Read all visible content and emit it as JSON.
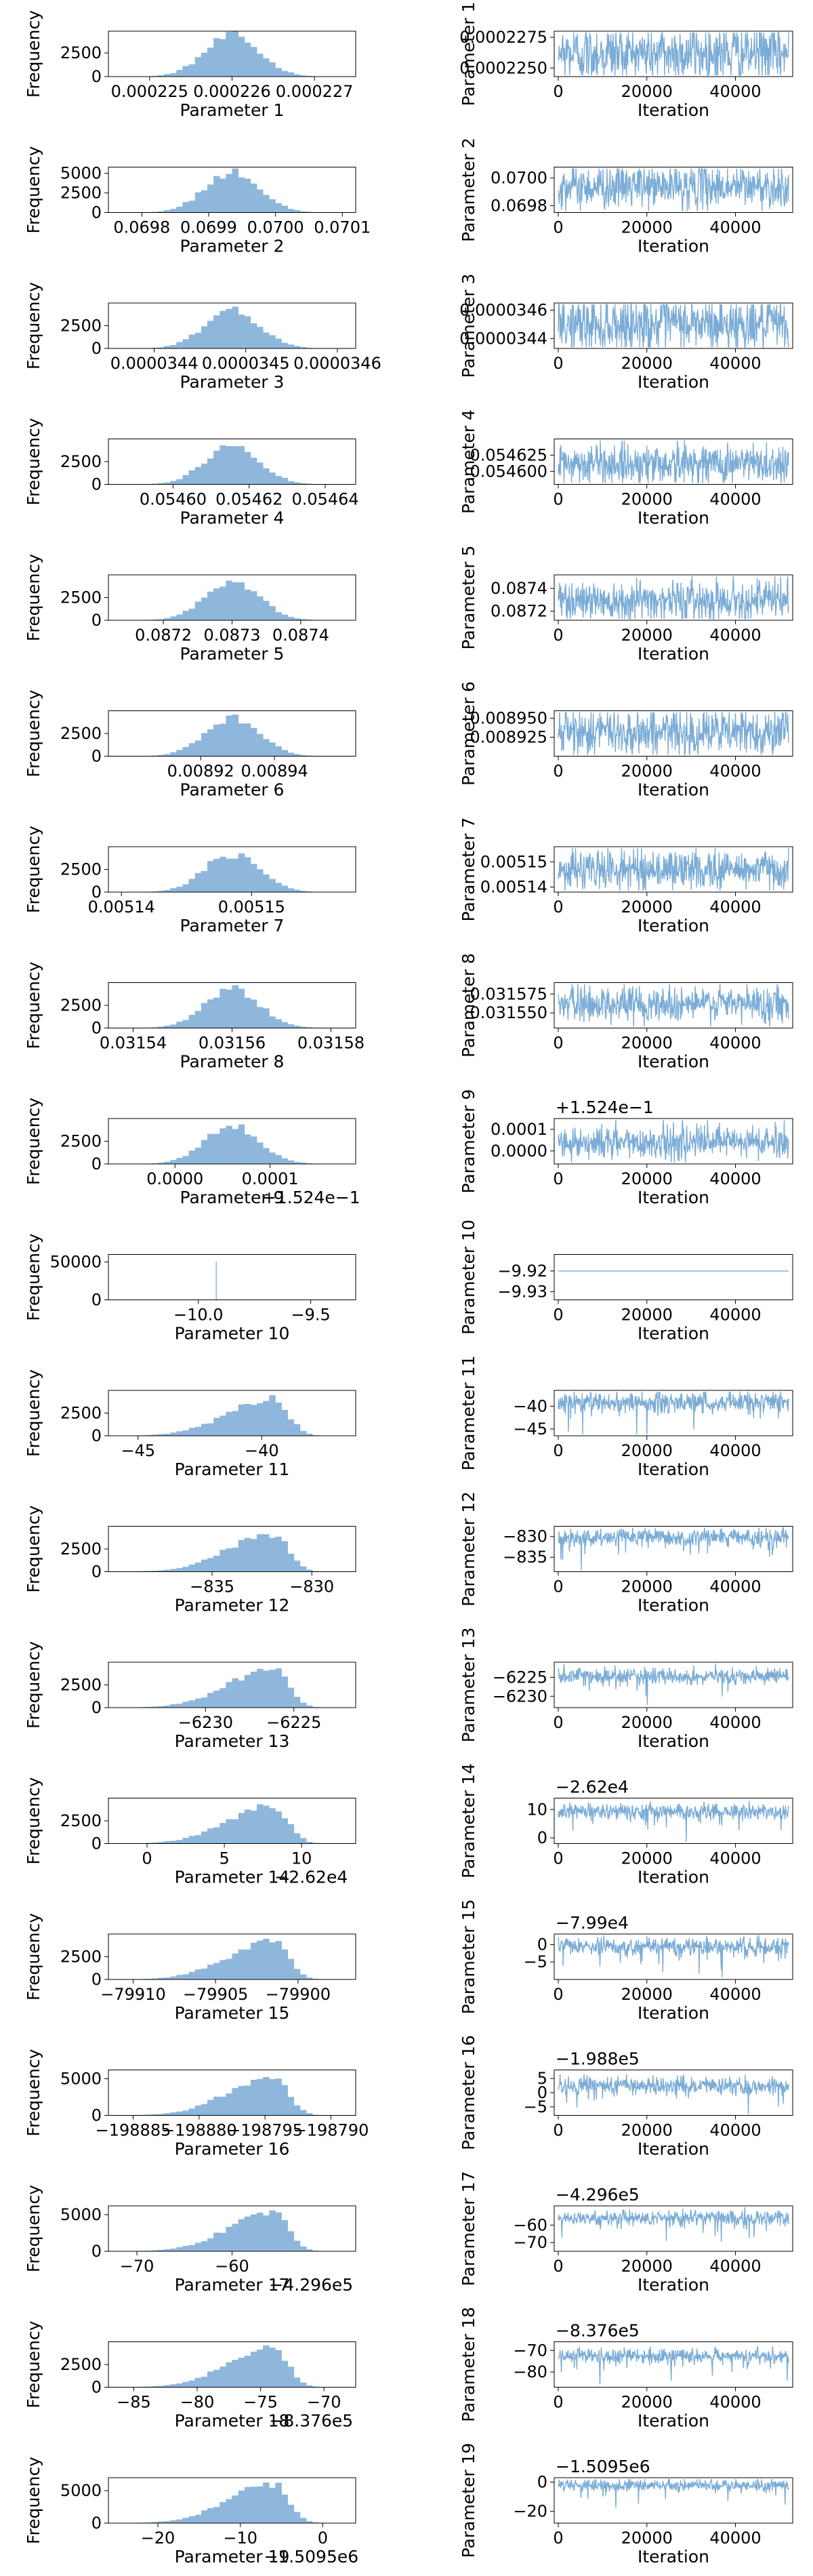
{
  "style": {
    "bar_color": "#8fb7dc",
    "trace_color": "#7bacd6",
    "frame_color": "#000000"
  },
  "chart_data": [
    {
      "param": 1,
      "hist": {
        "type": "bar",
        "xlabel": "Parameter 1",
        "ylabel": "Frequency",
        "xticks": [
          "0.000225",
          "0.000226",
          "0.000227"
        ],
        "yticks": [
          "0",
          "2500"
        ],
        "offset": "",
        "peak": 4300,
        "ymax": 4800,
        "skew": 0,
        "tail": 0.35,
        "xrange": [
          0.0002245,
          0.0002275
        ]
      },
      "trace": {
        "type": "line",
        "xlabel": "Iteration",
        "ylabel": "Parameter 1",
        "xticks": [
          "0",
          "20000",
          "40000"
        ],
        "yticks": [
          "0.0002250",
          "0.0002275"
        ],
        "offset": "",
        "mean": 0.0002262,
        "amp": 1.2e-06,
        "spikes": 0,
        "range": [
          0.0002243,
          0.000228
        ]
      }
    },
    {
      "param": 2,
      "hist": {
        "type": "bar",
        "xlabel": "Parameter 2",
        "ylabel": "Frequency",
        "xticks": [
          "0.0698",
          "0.0699",
          "0.0700",
          "0.0701"
        ],
        "yticks": [
          "0",
          "2500",
          "5000"
        ],
        "offset": "",
        "peak": 5100,
        "ymax": 5800,
        "skew": 0,
        "tail": 0.35,
        "xrange": [
          0.06975,
          0.07012
        ]
      },
      "trace": {
        "type": "line",
        "xlabel": "Iteration",
        "ylabel": "Parameter 2",
        "xticks": [
          "0",
          "20000",
          "40000"
        ],
        "yticks": [
          "0.0698",
          "0.0700"
        ],
        "offset": "",
        "mean": 0.06994,
        "amp": 8e-05,
        "spikes": 0,
        "range": [
          0.06975,
          0.07008
        ]
      }
    },
    {
      "param": 3,
      "hist": {
        "type": "bar",
        "xlabel": "Parameter 3",
        "ylabel": "Frequency",
        "xticks": [
          "0.0000344",
          "0.0000345",
          "0.0000346"
        ],
        "yticks": [
          "0",
          "2500"
        ],
        "offset": "",
        "peak": 4200,
        "ymax": 5000,
        "skew": 0,
        "tail": 0.35,
        "xrange": [
          3.435e-05,
          3.462e-05
        ]
      },
      "trace": {
        "type": "line",
        "xlabel": "Iteration",
        "ylabel": "Parameter 3",
        "xticks": [
          "0",
          "20000",
          "40000"
        ],
        "yticks": [
          "0.0000344",
          "0.0000346"
        ],
        "offset": "",
        "mean": 3.45e-05,
        "amp": 1e-07,
        "spikes": 0,
        "range": [
          3.433e-05,
          3.465e-05
        ]
      }
    },
    {
      "param": 4,
      "hist": {
        "type": "bar",
        "xlabel": "Parameter 4",
        "ylabel": "Frequency",
        "xticks": [
          "0.05460",
          "0.05462",
          "0.05464"
        ],
        "yticks": [
          "0",
          "2500"
        ],
        "offset": "",
        "peak": 4200,
        "ymax": 5000,
        "skew": 0,
        "tail": 0.35,
        "xrange": [
          0.054583,
          0.054648
        ]
      },
      "trace": {
        "type": "line",
        "xlabel": "Iteration",
        "ylabel": "Parameter 4",
        "xticks": [
          "0",
          "20000",
          "40000"
        ],
        "yticks": [
          "0.054600",
          "0.054625"
        ],
        "offset": "",
        "mean": 0.054612,
        "amp": 1.6e-05,
        "spikes": 0,
        "range": [
          0.05458,
          0.05465
        ]
      }
    },
    {
      "param": 5,
      "hist": {
        "type": "bar",
        "xlabel": "Parameter 5",
        "ylabel": "Frequency",
        "xticks": [
          "0.0872",
          "0.0873",
          "0.0874"
        ],
        "yticks": [
          "0",
          "2500"
        ],
        "offset": "",
        "peak": 4200,
        "ymax": 5000,
        "skew": 0,
        "tail": 0.35,
        "xrange": [
          0.08712,
          0.08748
        ]
      },
      "trace": {
        "type": "line",
        "xlabel": "Iteration",
        "ylabel": "Parameter 5",
        "xticks": [
          "0",
          "20000",
          "40000"
        ],
        "yticks": [
          "0.0872",
          "0.0874"
        ],
        "offset": "",
        "mean": 0.0873,
        "amp": 9e-05,
        "spikes": 0,
        "range": [
          0.08712,
          0.08752
        ]
      }
    },
    {
      "param": 6,
      "hist": {
        "type": "bar",
        "xlabel": "Parameter 6",
        "ylabel": "Frequency",
        "xticks": [
          "0.00892",
          "0.00894"
        ],
        "yticks": [
          "0",
          "2500"
        ],
        "offset": "",
        "peak": 4200,
        "ymax": 5000,
        "skew": 0,
        "tail": 0.35,
        "xrange": [
          0.008895,
          0.008962
        ]
      },
      "trace": {
        "type": "line",
        "xlabel": "Iteration",
        "ylabel": "Parameter 6",
        "xticks": [
          "0",
          "20000",
          "40000"
        ],
        "yticks": [
          "0.008925",
          "0.008950"
        ],
        "offset": "",
        "mean": 0.008932,
        "amp": 1.6e-05,
        "spikes": 0,
        "range": [
          0.0089,
          0.00896
        ]
      }
    },
    {
      "param": 7,
      "hist": {
        "type": "bar",
        "xlabel": "Parameter 7",
        "ylabel": "Frequency",
        "xticks": [
          "0.00514",
          "0.00515"
        ],
        "yticks": [
          "0",
          "2500"
        ],
        "offset": "",
        "peak": 4200,
        "ymax": 5000,
        "skew": 0,
        "tail": 0.35,
        "xrange": [
          0.005139,
          0.005158
        ]
      },
      "trace": {
        "type": "line",
        "xlabel": "Iteration",
        "ylabel": "Parameter 7",
        "xticks": [
          "0",
          "20000",
          "40000"
        ],
        "yticks": [
          "0.00514",
          "0.00515"
        ],
        "offset": "",
        "mean": 0.005147,
        "amp": 4e-06,
        "spikes": 0,
        "range": [
          0.005138,
          0.005156
        ]
      }
    },
    {
      "param": 8,
      "hist": {
        "type": "bar",
        "xlabel": "Parameter 8",
        "ylabel": "Frequency",
        "xticks": [
          "0.03154",
          "0.03156",
          "0.03158"
        ],
        "yticks": [
          "0",
          "2500"
        ],
        "offset": "",
        "peak": 4300,
        "ymax": 5000,
        "skew": 0,
        "tail": 0.35,
        "xrange": [
          0.031535,
          0.031585
        ]
      },
      "trace": {
        "type": "line",
        "xlabel": "Iteration",
        "ylabel": "Parameter 8",
        "xticks": [
          "0",
          "20000",
          "40000"
        ],
        "yticks": [
          "0.031550",
          "0.031575"
        ],
        "offset": "",
        "mean": 0.031562,
        "amp": 1.2e-05,
        "spikes": 0,
        "range": [
          0.03153,
          0.03159
        ]
      }
    },
    {
      "param": 9,
      "hist": {
        "type": "bar",
        "xlabel": "Parameter 9",
        "ylabel": "Frequency",
        "xticks": [
          "0.0000",
          "0.0001"
        ],
        "yticks": [
          "0",
          "2500"
        ],
        "offset": "+1.524e−1",
        "peak": 4200,
        "ymax": 5000,
        "skew": 0,
        "tail": 0.35,
        "xrange": [
          -7e-05,
          0.00019
        ]
      },
      "trace": {
        "type": "line",
        "xlabel": "Iteration",
        "ylabel": "Parameter 9",
        "xticks": [
          "0",
          "20000",
          "40000"
        ],
        "yticks": [
          "0.0000",
          "0.0001"
        ],
        "offset": "+1.524e−1",
        "mean": 4e-05,
        "amp": 4e-05,
        "spikes": 0,
        "range": [
          -6e-05,
          0.00015
        ]
      }
    },
    {
      "param": 10,
      "hist": {
        "type": "bar",
        "xlabel": "Parameter 10",
        "ylabel": "Frequency",
        "xticks": [
          "−10.0",
          "−9.5"
        ],
        "yticks": [
          "0",
          "50000"
        ],
        "offset": "",
        "peak": 0,
        "ymax": 60000,
        "skew": 0,
        "tail": 0,
        "xrange": [
          -10.4,
          -9.3
        ]
      },
      "trace": {
        "type": "line",
        "xlabel": "Iteration",
        "ylabel": "Parameter 10",
        "xticks": [
          "0",
          "20000",
          "40000"
        ],
        "yticks": [
          "−9.92",
          "−9.93"
        ],
        "offset": "",
        "mean": -9.92,
        "amp": 0,
        "spikes": 0,
        "range": [
          -9.934,
          -9.912
        ]
      }
    },
    {
      "param": 11,
      "hist": {
        "type": "bar",
        "xlabel": "Parameter 11",
        "ylabel": "Frequency",
        "xticks": [
          "−45",
          "−40"
        ],
        "yticks": [
          "0",
          "2500"
        ],
        "offset": "",
        "peak": 4200,
        "ymax": 5000,
        "skew": 0.75,
        "tail": 1.3,
        "xrange": [
          -46.2,
          -36.2
        ]
      },
      "trace": {
        "type": "line",
        "xlabel": "Iteration",
        "ylabel": "Parameter 11",
        "xticks": [
          "0",
          "20000",
          "40000"
        ],
        "yticks": [
          "−40",
          "−45"
        ],
        "offset": "",
        "mean": -39.2,
        "amp": 1.2,
        "spikes": 0.9,
        "range": [
          -46.5,
          -36.5
        ]
      }
    },
    {
      "param": 12,
      "hist": {
        "type": "bar",
        "xlabel": "Parameter 12",
        "ylabel": "Frequency",
        "xticks": [
          "−835",
          "−830"
        ],
        "yticks": [
          "0",
          "2500"
        ],
        "offset": "",
        "peak": 4200,
        "ymax": 5000,
        "skew": 0.75,
        "tail": 1.3,
        "xrange": [
          -840.2,
          -827.8
        ]
      },
      "trace": {
        "type": "line",
        "xlabel": "Iteration",
        "ylabel": "Parameter 12",
        "xticks": [
          "0",
          "20000",
          "40000"
        ],
        "yticks": [
          "−830",
          "−835"
        ],
        "offset": "",
        "mean": -830.3,
        "amp": 1.1,
        "spikes": 0.9,
        "range": [
          -838.5,
          -827.5
        ]
      }
    },
    {
      "param": 13,
      "hist": {
        "type": "bar",
        "xlabel": "Parameter 13",
        "ylabel": "Frequency",
        "xticks": [
          "−6230",
          "−6225"
        ],
        "yticks": [
          "0",
          "2500"
        ],
        "offset": "",
        "peak": 4200,
        "ymax": 5000,
        "skew": 0.75,
        "tail": 1.3,
        "xrange": [
          -6235.5,
          -6221.5
        ]
      },
      "trace": {
        "type": "line",
        "xlabel": "Iteration",
        "ylabel": "Parameter 13",
        "xticks": [
          "0",
          "20000",
          "40000"
        ],
        "yticks": [
          "−6225",
          "−6230"
        ],
        "offset": "",
        "mean": -6224.7,
        "amp": 1.1,
        "spikes": 0.9,
        "range": [
          -6233,
          -6221
        ]
      }
    },
    {
      "param": 14,
      "hist": {
        "type": "bar",
        "xlabel": "Parameter 14",
        "ylabel": "Frequency",
        "xticks": [
          "0",
          "5",
          "10"
        ],
        "yticks": [
          "0",
          "2500"
        ],
        "offset": "−2.62e4",
        "peak": 4200,
        "ymax": 5000,
        "skew": 0.75,
        "tail": 1.3,
        "xrange": [
          -2.5,
          13.5
        ]
      },
      "trace": {
        "type": "line",
        "xlabel": "Iteration",
        "ylabel": "Parameter 14",
        "xticks": [
          "0",
          "20000",
          "40000"
        ],
        "yticks": [
          "0",
          "10"
        ],
        "offset": "−2.62e4",
        "mean": 9.2,
        "amp": 1.4,
        "spikes": 0.9,
        "range": [
          -2,
          14
        ]
      }
    },
    {
      "param": 15,
      "hist": {
        "type": "bar",
        "xlabel": "Parameter 15",
        "ylabel": "Frequency",
        "xticks": [
          "−79910",
          "−79905",
          "−79900"
        ],
        "yticks": [
          "0",
          "2500"
        ],
        "offset": "",
        "peak": 4200,
        "ymax": 5000,
        "skew": 0.75,
        "tail": 1.3,
        "xrange": [
          -79911.5,
          -79896.5
        ]
      },
      "trace": {
        "type": "line",
        "xlabel": "Iteration",
        "ylabel": "Parameter 15",
        "xticks": [
          "0",
          "20000",
          "40000"
        ],
        "yticks": [
          "0",
          "−5"
        ],
        "offset": "−7.99e4",
        "mean": -0.6,
        "amp": 1.3,
        "spikes": 0.9,
        "range": [
          -10,
          3
        ]
      }
    },
    {
      "param": 16,
      "hist": {
        "type": "bar",
        "xlabel": "Parameter 16",
        "ylabel": "Frequency",
        "xticks": [
          "−198885",
          "−198880",
          "−198795",
          "−198790"
        ],
        "yticks": [
          "0",
          "5000"
        ],
        "offset": "",
        "peak": 5200,
        "ymax": 6200,
        "skew": 0.75,
        "tail": 1.3,
        "xrange": [
          -198890,
          -198788
        ]
      },
      "trace": {
        "type": "line",
        "xlabel": "Iteration",
        "ylabel": "Parameter 16",
        "xticks": [
          "0",
          "20000",
          "40000"
        ],
        "yticks": [
          "5",
          "0",
          "−5"
        ],
        "offset": "−1.988e5",
        "mean": 2.5,
        "amp": 1.6,
        "spikes": 0.9,
        "range": [
          -8,
          8
        ]
      }
    },
    {
      "param": 17,
      "hist": {
        "type": "bar",
        "xlabel": "Parameter 17",
        "ylabel": "Frequency",
        "xticks": [
          "−70",
          "−60"
        ],
        "yticks": [
          "0",
          "5000"
        ],
        "offset": "−4.296e5",
        "peak": 5200,
        "ymax": 6200,
        "skew": 0.75,
        "tail": 1.3,
        "xrange": [
          -73,
          -47
        ]
      },
      "trace": {
        "type": "line",
        "xlabel": "Iteration",
        "ylabel": "Parameter 17",
        "xticks": [
          "0",
          "20000",
          "40000"
        ],
        "yticks": [
          "−60",
          "−70"
        ],
        "offset": "−4.296e5",
        "mean": -56,
        "amp": 2.2,
        "spikes": 0.9,
        "range": [
          -75,
          -49
        ]
      }
    },
    {
      "param": 18,
      "hist": {
        "type": "bar",
        "xlabel": "Parameter 18",
        "ylabel": "Frequency",
        "xticks": [
          "−85",
          "−80",
          "−75",
          "−70"
        ],
        "yticks": [
          "0",
          "2500"
        ],
        "offset": "−8.376e5",
        "peak": 4200,
        "ymax": 5000,
        "skew": 0.75,
        "tail": 1.3,
        "xrange": [
          -87,
          -67.5
        ]
      },
      "trace": {
        "type": "line",
        "xlabel": "Iteration",
        "ylabel": "Parameter 18",
        "xticks": [
          "0",
          "20000",
          "40000"
        ],
        "yticks": [
          "−70",
          "−80"
        ],
        "offset": "−8.376e5",
        "mean": -72.5,
        "amp": 1.8,
        "spikes": 0.9,
        "range": [
          -87,
          -66
        ]
      }
    },
    {
      "param": 19,
      "hist": {
        "type": "bar",
        "xlabel": "Parameter 19",
        "ylabel": "Frequency",
        "xticks": [
          "−20",
          "−10",
          "0"
        ],
        "yticks": [
          "0",
          "5000"
        ],
        "offset": "−1.5095e6",
        "peak": 6000,
        "ymax": 7000,
        "skew": 0.75,
        "tail": 1.3,
        "xrange": [
          -26,
          4
        ]
      },
      "trace": {
        "type": "line",
        "xlabel": "Iteration",
        "ylabel": "Parameter 19",
        "xticks": [
          "0",
          "20000",
          "40000"
        ],
        "yticks": [
          "0",
          "−20"
        ],
        "offset": "−1.5095e6",
        "mean": -2,
        "amp": 2.2,
        "spikes": 0.9,
        "range": [
          -28,
          3
        ]
      }
    }
  ]
}
